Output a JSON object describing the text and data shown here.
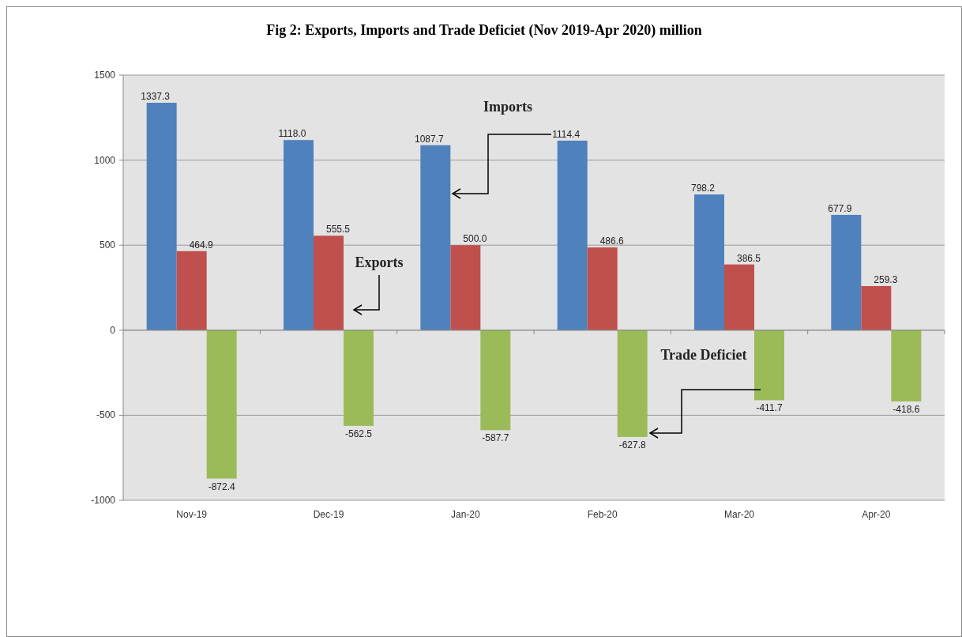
{
  "chart_data": {
    "type": "bar",
    "title": "Fig 2: Exports, Imports and Trade Deficiet (Nov 2019-Apr 2020) million",
    "categories": [
      "Nov-19",
      "Dec-19",
      "Jan-20",
      "Feb-20",
      "Mar-20",
      "Apr-20"
    ],
    "series": [
      {
        "name": "Imports",
        "color": "#4f81bd",
        "values": [
          1337.3,
          1118.0,
          1087.7,
          1114.4,
          798.2,
          677.9
        ],
        "value_labels": [
          "1337.3",
          "1118.0",
          "1087.7",
          "1114.4",
          "798.2",
          "677.9"
        ]
      },
      {
        "name": "Exports",
        "color": "#c0504d",
        "values": [
          464.9,
          555.5,
          500.0,
          486.6,
          386.5,
          259.3
        ],
        "value_labels": [
          "464.9",
          "555.5",
          "500.0",
          "486.6",
          "386.5",
          "259.3"
        ]
      },
      {
        "name": "Trade Deficiet",
        "color": "#9bbb59",
        "values": [
          -872.4,
          -562.5,
          -587.7,
          -627.8,
          -411.7,
          -418.6
        ],
        "value_labels": [
          "-872.4",
          "-562.5",
          "-587.7",
          "-627.8",
          "-411.7",
          "-418.6"
        ]
      }
    ],
    "ylim": [
      -1000,
      1500
    ],
    "yticks": [
      -1000,
      -500,
      0,
      500,
      1000,
      1500
    ],
    "grid": "y",
    "legend": false
  }
}
